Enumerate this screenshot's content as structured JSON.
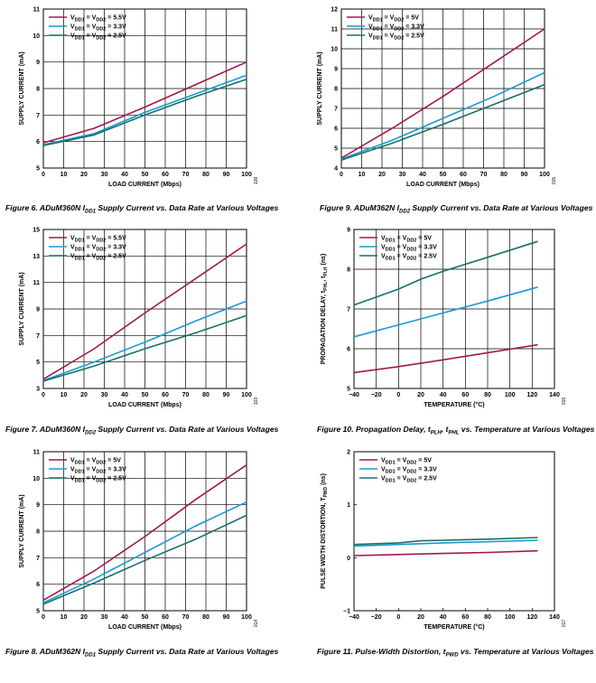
{
  "colors": {
    "s1": "#a0184e",
    "s2": "#1a9ad1",
    "s3": "#16706a"
  },
  "chart_data": [
    {
      "id": "fig6",
      "type": "line",
      "title": "Figure 6. ADuM360N I_DD1 Supply Current vs. Data Rate at Various Voltages",
      "xlabel": "LOAD CURRENT (Mbps)",
      "ylabel": "SUPPLY CURRENT (mA)",
      "xlim": [
        0,
        100
      ],
      "ylim": [
        5,
        11
      ],
      "xticks": [
        0,
        10,
        20,
        30,
        40,
        50,
        60,
        70,
        80,
        90,
        100
      ],
      "yticks": [
        5,
        6,
        7,
        8,
        9,
        10,
        11
      ],
      "grid": true,
      "legend_position": "top-left",
      "code": "109",
      "series": [
        {
          "name": "VDD1 = VDD2 = 5.5V",
          "x": [
            0,
            25,
            50,
            75,
            100
          ],
          "y": [
            5.95,
            6.5,
            7.3,
            8.15,
            9.0
          ]
        },
        {
          "name": "VDD1 = VDD2 = 3.3V",
          "x": [
            0,
            25,
            50,
            75,
            100
          ],
          "y": [
            5.88,
            6.3,
            7.1,
            7.8,
            8.5
          ]
        },
        {
          "name": "VDD1 = VDD2 = 2.5V",
          "x": [
            0,
            25,
            50,
            75,
            100
          ],
          "y": [
            5.85,
            6.25,
            7.0,
            7.7,
            8.35
          ]
        }
      ]
    },
    {
      "id": "fig9",
      "type": "line",
      "title": "Figure 9. ADuM362N I_DD2 Supply Current vs. Data Rate at Various Voltages",
      "xlabel": "LOAD CURRENT (Mbps)",
      "ylabel": "SUPPLY CURRENT (mA)",
      "xlim": [
        0,
        100
      ],
      "ylim": [
        4,
        12
      ],
      "xticks": [
        0,
        10,
        20,
        30,
        40,
        50,
        60,
        70,
        80,
        90,
        100
      ],
      "yticks": [
        4,
        5,
        6,
        7,
        8,
        9,
        10,
        11,
        12
      ],
      "grid": true,
      "legend_position": "top-left",
      "code": "015",
      "series": [
        {
          "name": "VDD1 = VDD2 = 5V",
          "x": [
            0,
            25,
            50,
            75,
            100
          ],
          "y": [
            4.5,
            6.0,
            7.6,
            9.3,
            11.0
          ]
        },
        {
          "name": "VDD1 = VDD2 = 3.3V",
          "x": [
            0,
            25,
            50,
            75,
            100
          ],
          "y": [
            4.45,
            5.4,
            6.5,
            7.6,
            8.8
          ]
        },
        {
          "name": "VDD1 = VDD2 = 2.5V",
          "x": [
            0,
            25,
            50,
            75,
            100
          ],
          "y": [
            4.4,
            5.25,
            6.2,
            7.2,
            8.2
          ]
        }
      ]
    },
    {
      "id": "fig7",
      "type": "line",
      "title": "Figure 7. ADuM360N I_DD2 Supply Current vs. Data Rate at Various Voltages",
      "xlabel": "LOAD CURRENT (Mbps)",
      "ylabel": "SUPPLY CURRENT (mA)",
      "xlim": [
        0,
        100
      ],
      "ylim": [
        3,
        15
      ],
      "xticks": [
        0,
        10,
        20,
        30,
        40,
        50,
        60,
        70,
        80,
        90,
        100
      ],
      "yticks": [
        3,
        5,
        7,
        9,
        11,
        13,
        15
      ],
      "grid": true,
      "legend_position": "top-left",
      "code": "103",
      "series": [
        {
          "name": "VDD1 = VDD2 = 5.5V",
          "x": [
            0,
            25,
            50,
            75,
            100
          ],
          "y": [
            3.7,
            6.0,
            8.7,
            11.3,
            13.9
          ]
        },
        {
          "name": "VDD1 = VDD2 = 3.3V",
          "x": [
            0,
            25,
            50,
            75,
            100
          ],
          "y": [
            3.6,
            5.0,
            6.5,
            8.1,
            9.6
          ]
        },
        {
          "name": "VDD1 = VDD2 = 2.5V",
          "x": [
            0,
            25,
            50,
            75,
            100
          ],
          "y": [
            3.55,
            4.7,
            6.0,
            7.2,
            8.5
          ]
        }
      ]
    },
    {
      "id": "fig10",
      "type": "line",
      "title": "Figure 10. Propagation Delay, t_PLH, t_PHL vs. Temperature at Various Voltages",
      "xlabel": "TEMPERATURE (°C)",
      "ylabel": "PROPAGATION DELAY, t_PHL, t_PLH (ns)",
      "xlim": [
        -40,
        140
      ],
      "ylim": [
        5,
        9
      ],
      "xticks": [
        -40,
        -20,
        0,
        20,
        40,
        60,
        80,
        100,
        120,
        140
      ],
      "yticks": [
        5,
        6,
        7,
        8,
        9
      ],
      "grid": true,
      "legend_position": "top-left",
      "code": "016",
      "series": [
        {
          "name": "VDD1 = VDD2 = 5V",
          "x": [
            -40,
            0,
            40,
            80,
            125
          ],
          "y": [
            5.4,
            5.55,
            5.72,
            5.9,
            6.1
          ]
        },
        {
          "name": "VDD1 = VDD2 = 3.3V",
          "x": [
            -40,
            0,
            40,
            80,
            125
          ],
          "y": [
            6.3,
            6.6,
            6.9,
            7.2,
            7.55
          ]
        },
        {
          "name": "VDD1 = VDD2 = 2.5V",
          "x": [
            -40,
            0,
            20,
            40,
            80,
            125
          ],
          "y": [
            7.1,
            7.5,
            7.75,
            7.95,
            8.3,
            8.7
          ]
        }
      ]
    },
    {
      "id": "fig8",
      "type": "line",
      "title": "Figure 8. ADuM362N I_DD1 Supply Current vs. Data Rate at Various Voltages",
      "xlabel": "LOAD CURRENT (Mbps)",
      "ylabel": "SUPPLY CURRENT (mA)",
      "xlim": [
        0,
        100
      ],
      "ylim": [
        5,
        11
      ],
      "xticks": [
        0,
        10,
        20,
        30,
        40,
        50,
        60,
        70,
        80,
        90,
        100
      ],
      "yticks": [
        5,
        6,
        7,
        8,
        9,
        10,
        11
      ],
      "grid": true,
      "legend_position": "top-left",
      "code": "014",
      "series": [
        {
          "name": "VDD1 = VDD2 = 5V",
          "x": [
            0,
            25,
            50,
            75,
            100
          ],
          "y": [
            5.4,
            6.5,
            7.8,
            9.2,
            10.5
          ]
        },
        {
          "name": "VDD1 = VDD2 = 3.3V",
          "x": [
            0,
            25,
            50,
            75,
            100
          ],
          "y": [
            5.3,
            6.2,
            7.2,
            8.2,
            9.1
          ]
        },
        {
          "name": "VDD1 = VDD2 = 2.5V",
          "x": [
            0,
            25,
            50,
            75,
            100
          ],
          "y": [
            5.25,
            6.05,
            6.9,
            7.7,
            8.6
          ]
        }
      ]
    },
    {
      "id": "fig11",
      "type": "line",
      "title": "Figure 11. Pulse-Width Distortion, t_PWD vs. Temperature at Various Voltages",
      "xlabel": "TEMPERATURE (°C)",
      "ylabel": "PULSE WIDTH DISTORTION, T_PWD (ns)",
      "xlim": [
        -40,
        140
      ],
      "ylim": [
        -1,
        2
      ],
      "xticks": [
        -40,
        -20,
        0,
        20,
        40,
        60,
        80,
        100,
        120,
        140
      ],
      "yticks": [
        -1,
        0,
        1,
        2
      ],
      "grid": false,
      "legend_position": "top-left",
      "code": "017",
      "series": [
        {
          "name": "VDD1 = VDD2 = 5V",
          "x": [
            -40,
            0,
            40,
            80,
            125
          ],
          "y": [
            0.04,
            0.06,
            0.08,
            0.1,
            0.13
          ]
        },
        {
          "name": "VDD1 = VDD2 = 3.3V",
          "x": [
            -40,
            0,
            40,
            80,
            125
          ],
          "y": [
            0.22,
            0.25,
            0.28,
            0.3,
            0.33
          ]
        },
        {
          "name": "VDD1 = VDD2 = 2.5V",
          "x": [
            -40,
            0,
            20,
            40,
            80,
            125
          ],
          "y": [
            0.25,
            0.28,
            0.32,
            0.33,
            0.35,
            0.38
          ]
        }
      ]
    }
  ]
}
